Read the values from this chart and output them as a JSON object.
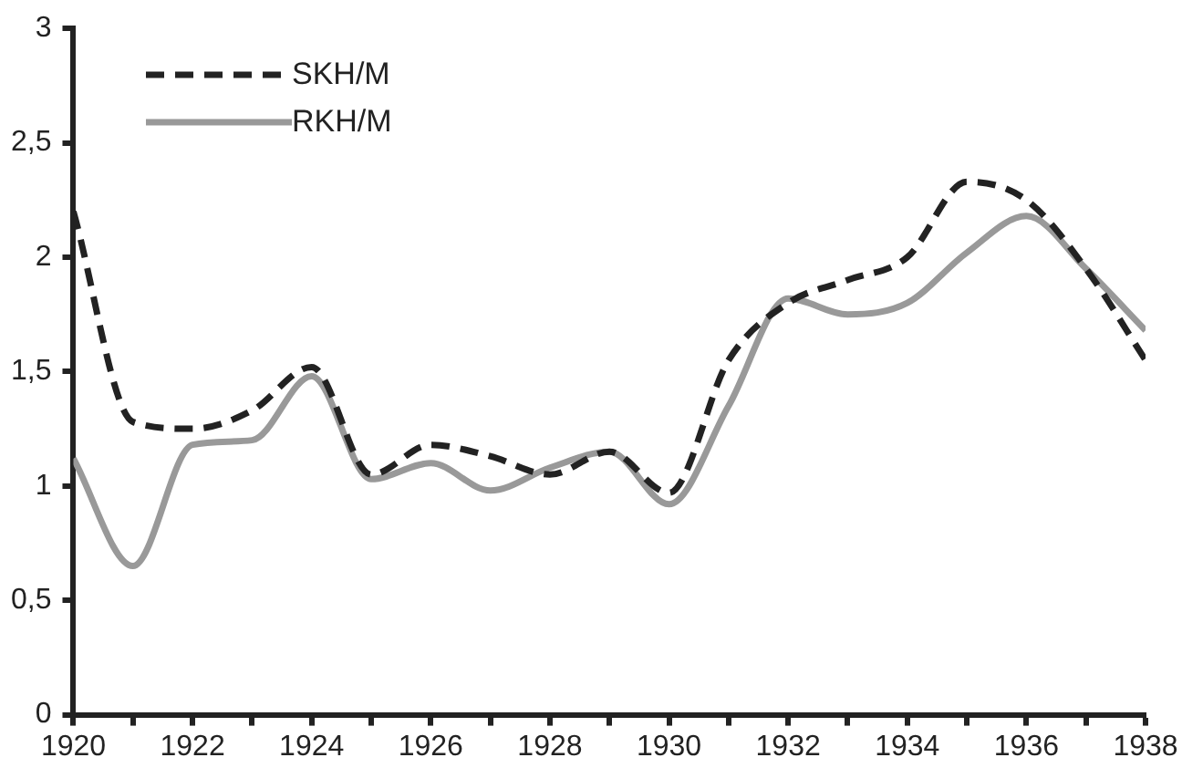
{
  "chart_data": {
    "type": "line",
    "x": [
      1920,
      1921,
      1922,
      1923,
      1924,
      1925,
      1926,
      1927,
      1928,
      1929,
      1930,
      1931,
      1932,
      1933,
      1934,
      1935,
      1936,
      1937,
      1938
    ],
    "series": [
      {
        "name": "SKH/M",
        "color": "#222222",
        "line_style": "dashed",
        "values": [
          2.2,
          1.28,
          1.25,
          1.33,
          1.52,
          1.05,
          1.18,
          1.13,
          1.05,
          1.15,
          0.97,
          1.55,
          1.8,
          1.9,
          2.0,
          2.33,
          2.25,
          1.95,
          1.55
        ]
      },
      {
        "name": "RKH/M",
        "color": "#999999",
        "line_style": "solid",
        "values": [
          1.12,
          0.65,
          1.18,
          1.2,
          1.48,
          1.03,
          1.1,
          0.98,
          1.08,
          1.15,
          0.92,
          1.35,
          1.82,
          1.75,
          1.8,
          2.02,
          2.18,
          1.95,
          1.68
        ]
      }
    ],
    "xlim": [
      1920,
      1938
    ],
    "xticks": [
      1920,
      {
        "value": 1921,
        "label": null
      },
      1922,
      {
        "value": 1923,
        "label": null
      },
      1924,
      {
        "value": 1925,
        "label": null
      },
      1926,
      {
        "value": 1927,
        "label": null
      },
      1928,
      {
        "value": 1929,
        "label": null
      },
      1930,
      {
        "value": 1931,
        "label": null
      },
      1932,
      {
        "value": 1933,
        "label": null
      },
      1934,
      {
        "value": 1935,
        "label": null
      },
      1936,
      {
        "value": 1937,
        "label": null
      },
      1938
    ],
    "ylim": [
      0,
      3
    ],
    "yticks": [
      0,
      {
        "value": 0.5,
        "label": "0,5"
      },
      1,
      {
        "value": 1.5,
        "label": "1,5"
      },
      2,
      {
        "value": 2.5,
        "label": "2,5"
      },
      3
    ],
    "grid": false,
    "legend": "top left",
    "marker": "none"
  }
}
